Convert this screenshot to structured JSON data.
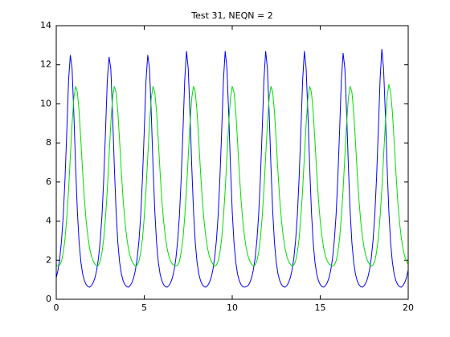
{
  "chart_data": {
    "type": "line",
    "title": "Test 31, NEQN = 2",
    "x": [
      0,
      0.1,
      0.2,
      0.3,
      0.4,
      0.5,
      0.6,
      0.7,
      0.8,
      0.9,
      1,
      1.1,
      1.2,
      1.3,
      1.4,
      1.5,
      1.6,
      1.7,
      1.8,
      1.9,
      2,
      2.1,
      2.2,
      2.3,
      2.4,
      2.5,
      2.6,
      2.7,
      2.8,
      2.9,
      3,
      3.1,
      3.2,
      3.3,
      3.4,
      3.5,
      3.6,
      3.7,
      3.8,
      3.9,
      4,
      4.1,
      4.2,
      4.3,
      4.4,
      4.5,
      4.6,
      4.7,
      4.8,
      4.9,
      5,
      5.1,
      5.2,
      5.3,
      5.4,
      5.5,
      5.6,
      5.7,
      5.8,
      5.9,
      6,
      6.1,
      6.2,
      6.3,
      6.4,
      6.5,
      6.6,
      6.7,
      6.8,
      6.9,
      7,
      7.1,
      7.2,
      7.3,
      7.4,
      7.5,
      7.6,
      7.7,
      7.8,
      7.9,
      8,
      8.1,
      8.2,
      8.3,
      8.4,
      8.5,
      8.6,
      8.7,
      8.8,
      8.9,
      9,
      9.1,
      9.2,
      9.3,
      9.4,
      9.5,
      9.6,
      9.7,
      9.8,
      9.9,
      10,
      10.1,
      10.2,
      10.3,
      10.4,
      10.5,
      10.6,
      10.7,
      10.8,
      10.9,
      11,
      11.1,
      11.2,
      11.3,
      11.4,
      11.5,
      11.6,
      11.7,
      11.8,
      11.9,
      12,
      12.1,
      12.2,
      12.3,
      12.4,
      12.5,
      12.6,
      12.7,
      12.8,
      12.9,
      13,
      13.1,
      13.2,
      13.3,
      13.4,
      13.5,
      13.6,
      13.7,
      13.8,
      13.9,
      14,
      14.1,
      14.2,
      14.3,
      14.4,
      14.5,
      14.6,
      14.7,
      14.8,
      14.9,
      15,
      15.1,
      15.2,
      15.3,
      15.4,
      15.5,
      15.6,
      15.7,
      15.8,
      15.9,
      16,
      16.1,
      16.2,
      16.3,
      16.4,
      16.5,
      16.6,
      16.7,
      16.8,
      16.9,
      17,
      17.1,
      17.2,
      17.3,
      17.4,
      17.5,
      17.6,
      17.7,
      17.8,
      17.9,
      18,
      18.1,
      18.2,
      18.3,
      18.4,
      18.5,
      18.6,
      18.7,
      18.8,
      18.9,
      19,
      19.1,
      19.2,
      19.3,
      19.4,
      19.5,
      19.6,
      19.7,
      19.8,
      19.9,
      20
    ],
    "series": [
      {
        "color": "#0000ff",
        "values": [
          1.1,
          1.5,
          2.1,
          3.0,
          4.3,
          6.2,
          8.6,
          11.2,
          12.5,
          11.8,
          9.5,
          6.8,
          4.5,
          2.9,
          1.9,
          1.3,
          0.95,
          0.75,
          0.65,
          0.62,
          0.7,
          0.85,
          1.1,
          1.5,
          2.1,
          3.0,
          4.3,
          6.2,
          8.6,
          11.2,
          12.4,
          11.8,
          9.5,
          6.8,
          4.5,
          2.9,
          1.9,
          1.3,
          0.95,
          0.75,
          0.65,
          0.62,
          0.7,
          0.85,
          1.1,
          1.5,
          2.1,
          3.0,
          4.3,
          6.2,
          8.6,
          11.2,
          12.5,
          11.8,
          9.5,
          6.8,
          4.5,
          2.9,
          1.9,
          1.3,
          0.95,
          0.75,
          0.65,
          0.62,
          0.7,
          0.85,
          1.1,
          1.5,
          2.1,
          3.0,
          4.3,
          6.2,
          8.6,
          11.2,
          12.7,
          11.8,
          9.5,
          6.8,
          4.5,
          2.9,
          1.9,
          1.3,
          0.95,
          0.75,
          0.65,
          0.62,
          0.7,
          0.85,
          1.1,
          1.5,
          2.1,
          3.0,
          4.3,
          6.2,
          8.6,
          11.2,
          12.7,
          11.8,
          9.5,
          6.8,
          4.5,
          2.9,
          1.9,
          1.3,
          0.95,
          0.75,
          0.65,
          0.62,
          0.65,
          0.7,
          0.85,
          1.1,
          1.5,
          2.1,
          3.0,
          4.3,
          6.2,
          8.6,
          11.2,
          12.7,
          11.8,
          9.5,
          6.8,
          4.5,
          2.9,
          1.9,
          1.3,
          0.95,
          0.75,
          0.65,
          0.62,
          0.7,
          0.85,
          1.1,
          1.5,
          2.1,
          3.0,
          4.3,
          6.2,
          8.6,
          11.2,
          12.7,
          11.8,
          9.5,
          6.8,
          4.5,
          2.9,
          1.9,
          1.3,
          0.95,
          0.75,
          0.65,
          0.62,
          0.7,
          0.85,
          1.1,
          1.5,
          2.1,
          3.0,
          4.3,
          6.2,
          8.6,
          11.2,
          12.6,
          11.8,
          9.5,
          6.8,
          4.5,
          2.9,
          1.9,
          1.3,
          0.95,
          0.75,
          0.65,
          0.62,
          0.7,
          0.85,
          1.1,
          1.5,
          2.1,
          3.0,
          4.3,
          6.2,
          8.6,
          11.2,
          12.8,
          11.8,
          9.5,
          6.8,
          4.5,
          2.9,
          1.9,
          1.3,
          0.95,
          0.75,
          0.65,
          0.62,
          0.7,
          0.85,
          1.1,
          1.5
        ]
      },
      {
        "color": "#00dd00",
        "values": [
          1.75,
          1.7,
          1.75,
          1.95,
          2.4,
          3.1,
          4.2,
          5.6,
          7.3,
          9.0,
          10.3,
          10.9,
          10.6,
          9.6,
          8.1,
          6.5,
          5.1,
          4.0,
          3.2,
          2.6,
          2.2,
          1.95,
          1.8,
          1.7,
          1.75,
          1.95,
          2.4,
          3.1,
          4.2,
          5.6,
          7.3,
          9.0,
          10.3,
          10.9,
          10.6,
          9.6,
          8.1,
          6.5,
          5.1,
          4.0,
          3.2,
          2.6,
          2.2,
          1.95,
          1.8,
          1.7,
          1.75,
          1.95,
          2.4,
          3.1,
          4.2,
          5.6,
          7.3,
          9.0,
          10.3,
          10.9,
          10.6,
          9.6,
          8.1,
          6.5,
          5.1,
          4.0,
          3.2,
          2.6,
          2.2,
          1.95,
          1.8,
          1.75,
          1.7,
          1.75,
          1.95,
          2.4,
          3.1,
          4.2,
          5.6,
          7.3,
          9.0,
          10.3,
          10.9,
          10.6,
          9.6,
          8.1,
          6.5,
          5.1,
          4.0,
          3.2,
          2.6,
          2.2,
          1.95,
          1.8,
          1.7,
          1.75,
          1.95,
          2.4,
          3.1,
          4.2,
          5.6,
          7.3,
          9.0,
          10.3,
          10.9,
          10.6,
          9.6,
          8.1,
          6.5,
          5.1,
          4.0,
          3.2,
          2.6,
          2.2,
          1.95,
          1.8,
          1.7,
          1.75,
          1.95,
          2.4,
          3.1,
          4.2,
          5.6,
          7.3,
          9.0,
          10.3,
          10.9,
          10.6,
          9.6,
          8.1,
          6.5,
          5.1,
          4.0,
          3.2,
          2.6,
          2.2,
          1.95,
          1.8,
          1.7,
          1.75,
          1.95,
          2.4,
          3.1,
          4.2,
          5.6,
          7.3,
          9.0,
          10.3,
          10.9,
          10.6,
          9.6,
          8.1,
          6.5,
          5.1,
          4.0,
          3.2,
          2.6,
          2.2,
          1.95,
          1.8,
          1.75,
          1.7,
          1.75,
          1.95,
          2.4,
          3.1,
          4.2,
          5.6,
          7.3,
          9.0,
          10.3,
          10.9,
          10.6,
          9.6,
          8.1,
          6.5,
          5.1,
          4.0,
          3.2,
          2.6,
          2.2,
          1.95,
          1.8,
          1.7,
          1.75,
          1.95,
          2.4,
          3.1,
          4.2,
          5.6,
          7.3,
          9.0,
          10.3,
          11.0,
          10.6,
          9.6,
          8.1,
          6.5,
          5.1,
          4.0,
          3.2,
          2.6,
          2.2,
          1.95,
          1.8
        ]
      }
    ],
    "xlim": [
      0,
      20
    ],
    "xticks": [
      0,
      5,
      10,
      15,
      20
    ],
    "ylim": [
      0,
      14
    ],
    "yticks": [
      0,
      2,
      4,
      6,
      8,
      10,
      12,
      14
    ],
    "grid": false
  }
}
